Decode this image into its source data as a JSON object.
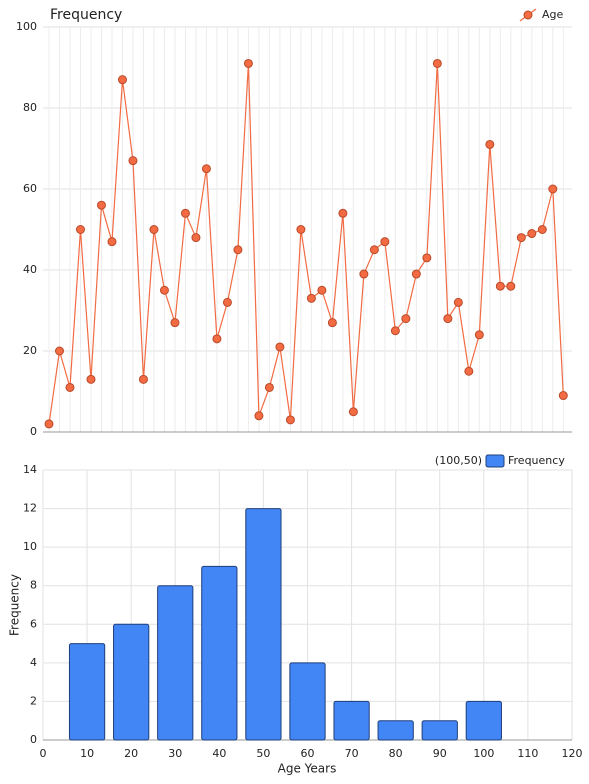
{
  "chart_data": [
    {
      "type": "line",
      "title": "Frequency",
      "series": [
        {
          "name": "Age",
          "color": "#f26b43",
          "values": [
            2,
            20,
            11,
            50,
            13,
            56,
            47,
            87,
            67,
            13,
            50,
            35,
            27,
            54,
            48,
            65,
            23,
            32,
            45,
            91,
            4,
            11,
            21,
            3,
            50,
            33,
            35,
            27,
            54,
            5,
            39,
            45,
            47,
            25,
            28,
            39,
            43,
            91,
            28,
            32,
            15,
            24,
            71,
            36,
            36,
            48,
            49,
            50,
            60,
            9
          ]
        }
      ],
      "ylim": [
        0,
        100
      ],
      "yticks": [
        0,
        20,
        40,
        60,
        80,
        100
      ],
      "grid": true
    },
    {
      "type": "bar",
      "annotation": "(100,50)",
      "x": [
        10,
        20,
        30,
        40,
        50,
        60,
        70,
        80,
        90,
        100
      ],
      "series": [
        {
          "name": "Frequency",
          "color": "#4285f4",
          "values": [
            5,
            6,
            8,
            9,
            12,
            4,
            2,
            1,
            1,
            2
          ]
        }
      ],
      "xlim": [
        0,
        120
      ],
      "xticks": [
        0,
        10,
        20,
        30,
        40,
        50,
        60,
        70,
        80,
        90,
        100,
        110,
        120
      ],
      "ylim": [
        0,
        14
      ],
      "yticks": [
        0,
        2,
        4,
        6,
        8,
        10,
        12,
        14
      ],
      "xlabel": "Age Years",
      "ylabel": "Frequency",
      "grid": true
    }
  ]
}
